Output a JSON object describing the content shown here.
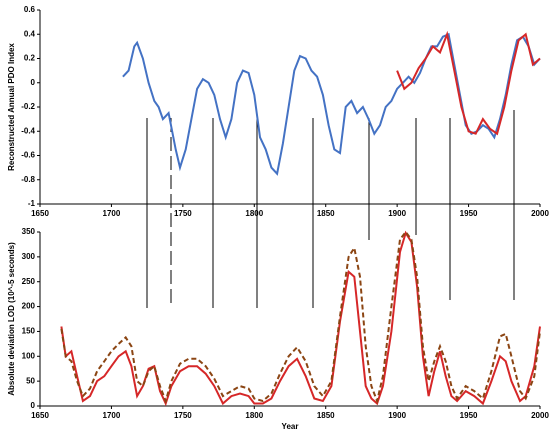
{
  "chart_data": [
    {
      "type": "line",
      "y_label": "Reconstructed Annual PDO Index",
      "xlim": [
        1650,
        2000
      ],
      "xticks": [
        1650,
        1700,
        1750,
        1800,
        1850,
        1900,
        1950,
        2000
      ],
      "ylim": [
        -1,
        0.6
      ],
      "yticks": [
        -1,
        -0.8,
        -0.6,
        -0.4,
        -0.2,
        0,
        0.2,
        0.4,
        0.6
      ],
      "series": [
        {
          "color": "#4472c4",
          "line_style": "solid",
          "x": [
            1708,
            1712,
            1716,
            1718,
            1722,
            1726,
            1730,
            1733,
            1736,
            1740,
            1745,
            1748,
            1752,
            1756,
            1760,
            1764,
            1768,
            1772,
            1776,
            1780,
            1784,
            1788,
            1792,
            1796,
            1800,
            1804,
            1808,
            1812,
            1816,
            1820,
            1824,
            1828,
            1832,
            1836,
            1840,
            1844,
            1848,
            1852,
            1856,
            1860,
            1864,
            1868,
            1872,
            1876,
            1880,
            1884,
            1888,
            1892,
            1896,
            1900,
            1904,
            1908,
            1912,
            1916,
            1920,
            1924,
            1928,
            1932,
            1936,
            1940,
            1944,
            1948,
            1952,
            1956,
            1960,
            1964,
            1968,
            1972,
            1976,
            1980,
            1984,
            1988,
            1992,
            1996,
            2000
          ],
          "values": [
            0.05,
            0.1,
            0.3,
            0.33,
            0.2,
            0.0,
            -0.15,
            -0.2,
            -0.3,
            -0.25,
            -0.55,
            -0.7,
            -0.55,
            -0.3,
            -0.05,
            0.03,
            0.0,
            -0.1,
            -0.3,
            -0.45,
            -0.3,
            0.0,
            0.1,
            0.08,
            -0.1,
            -0.45,
            -0.55,
            -0.7,
            -0.75,
            -0.5,
            -0.2,
            0.1,
            0.22,
            0.2,
            0.1,
            0.05,
            -0.1,
            -0.35,
            -0.55,
            -0.58,
            -0.2,
            -0.15,
            -0.25,
            -0.2,
            -0.3,
            -0.42,
            -0.35,
            -0.2,
            -0.15,
            -0.05,
            0.0,
            0.05,
            0.0,
            0.08,
            0.2,
            0.3,
            0.3,
            0.38,
            0.4,
            0.15,
            -0.1,
            -0.35,
            -0.42,
            -0.4,
            -0.35,
            -0.38,
            -0.45,
            -0.3,
            -0.1,
            0.15,
            0.35,
            0.38,
            0.3,
            0.15,
            0.2
          ]
        },
        {
          "color": "#d62728",
          "line_style": "solid",
          "x": [
            1900,
            1905,
            1910,
            1915,
            1920,
            1925,
            1930,
            1935,
            1940,
            1945,
            1950,
            1955,
            1960,
            1965,
            1970,
            1975,
            1980,
            1985,
            1990,
            1995,
            2000
          ],
          "values": [
            0.1,
            -0.05,
            0.0,
            0.12,
            0.2,
            0.3,
            0.25,
            0.4,
            0.1,
            -0.2,
            -0.4,
            -0.42,
            -0.3,
            -0.38,
            -0.42,
            -0.2,
            0.1,
            0.35,
            0.4,
            0.15,
            0.2
          ]
        }
      ]
    },
    {
      "type": "line",
      "x_label": "Year",
      "y_label": "Absolute deviation LOD (10^-5 seconds)",
      "xlim": [
        1650,
        2000
      ],
      "xticks": [
        1650,
        1700,
        1750,
        1800,
        1850,
        1900,
        1950,
        2000
      ],
      "ylim": [
        0,
        350
      ],
      "yticks": [
        0,
        50,
        100,
        150,
        200,
        250,
        300,
        350
      ],
      "series": [
        {
          "color": "#d62728",
          "line_style": "solid",
          "x": [
            1665,
            1668,
            1672,
            1676,
            1680,
            1685,
            1690,
            1695,
            1700,
            1705,
            1710,
            1714,
            1718,
            1722,
            1726,
            1730,
            1734,
            1738,
            1742,
            1748,
            1754,
            1760,
            1766,
            1772,
            1778,
            1784,
            1790,
            1796,
            1800,
            1806,
            1812,
            1818,
            1824,
            1830,
            1836,
            1842,
            1848,
            1854,
            1860,
            1866,
            1870,
            1874,
            1878,
            1882,
            1886,
            1890,
            1896,
            1902,
            1906,
            1910,
            1914,
            1918,
            1922,
            1926,
            1930,
            1934,
            1938,
            1942,
            1948,
            1954,
            1960,
            1966,
            1972,
            1976,
            1980,
            1986,
            1990,
            1996,
            2000
          ],
          "values": [
            160,
            100,
            110,
            60,
            10,
            20,
            50,
            60,
            80,
            100,
            110,
            80,
            20,
            40,
            75,
            80,
            30,
            5,
            40,
            70,
            80,
            80,
            65,
            40,
            5,
            20,
            25,
            20,
            5,
            5,
            15,
            50,
            80,
            95,
            60,
            15,
            10,
            40,
            170,
            270,
            260,
            150,
            40,
            15,
            5,
            40,
            150,
            310,
            348,
            330,
            240,
            100,
            20,
            70,
            110,
            60,
            20,
            10,
            30,
            20,
            5,
            50,
            100,
            90,
            50,
            10,
            20,
            80,
            160
          ]
        },
        {
          "color": "#8b4513",
          "line_style": "dashed",
          "x": [
            1665,
            1668,
            1672,
            1676,
            1680,
            1685,
            1690,
            1695,
            1700,
            1705,
            1710,
            1714,
            1718,
            1722,
            1726,
            1730,
            1734,
            1738,
            1742,
            1748,
            1754,
            1760,
            1766,
            1772,
            1778,
            1784,
            1790,
            1796,
            1800,
            1806,
            1812,
            1818,
            1824,
            1830,
            1836,
            1842,
            1848,
            1854,
            1860,
            1866,
            1870,
            1874,
            1878,
            1882,
            1886,
            1890,
            1896,
            1902,
            1906,
            1910,
            1914,
            1918,
            1922,
            1926,
            1930,
            1934,
            1938,
            1942,
            1948,
            1954,
            1960,
            1966,
            1972,
            1976,
            1980,
            1986,
            1990,
            1996,
            2000
          ],
          "values": [
            155,
            100,
            90,
            50,
            20,
            35,
            70,
            90,
            110,
            125,
            138,
            120,
            50,
            40,
            70,
            80,
            40,
            10,
            50,
            85,
            95,
            95,
            80,
            55,
            20,
            30,
            40,
            35,
            15,
            10,
            25,
            65,
            100,
            118,
            90,
            40,
            20,
            50,
            180,
            300,
            318,
            260,
            120,
            40,
            10,
            60,
            200,
            335,
            350,
            335,
            260,
            120,
            50,
            90,
            120,
            90,
            40,
            15,
            40,
            30,
            15,
            70,
            140,
            145,
            100,
            30,
            15,
            60,
            150
          ]
        }
      ]
    }
  ]
}
